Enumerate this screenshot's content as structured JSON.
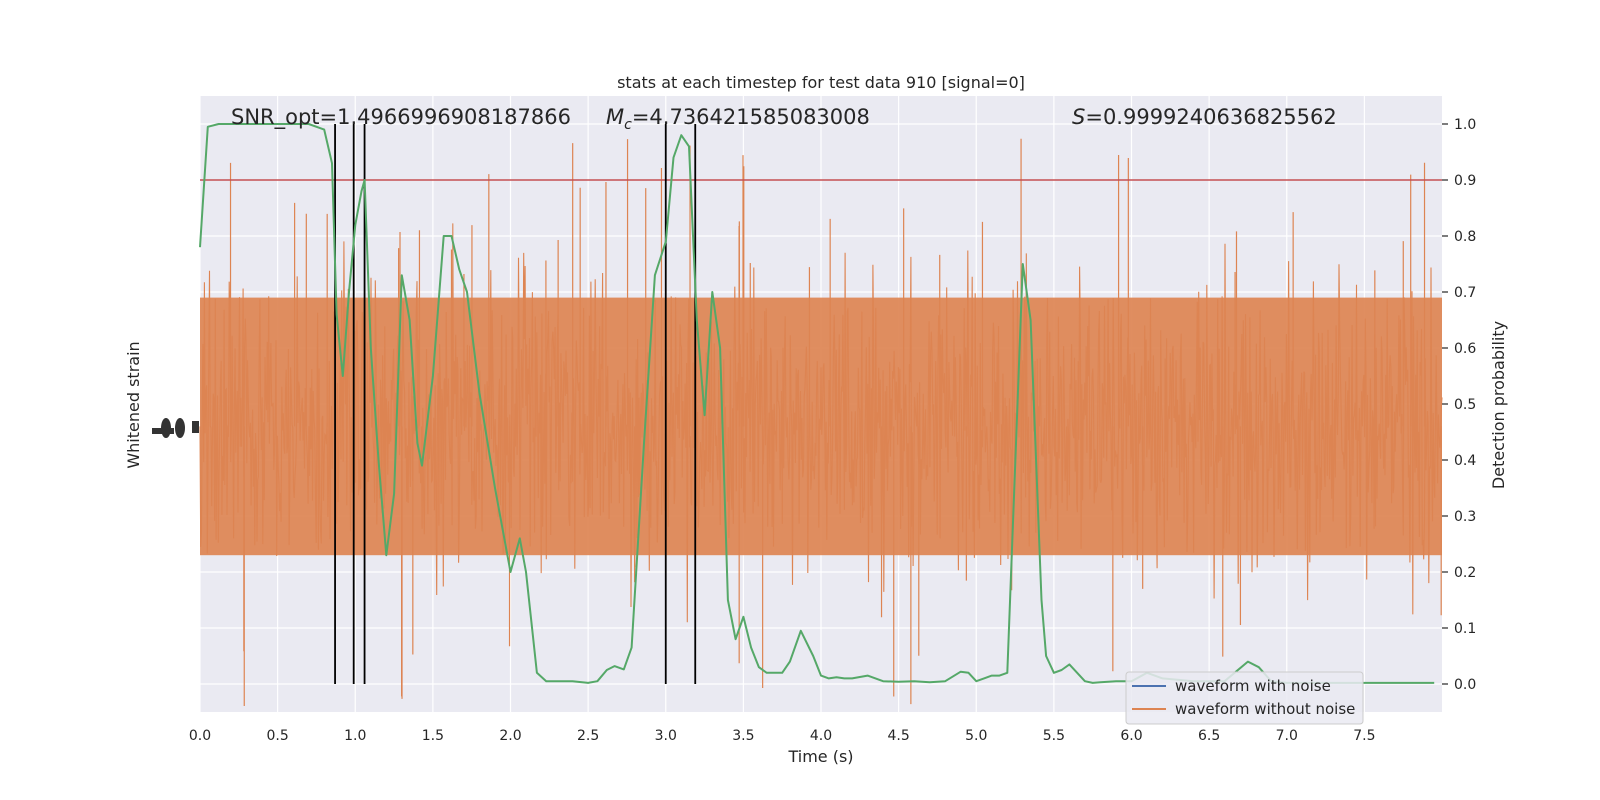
{
  "chart_data": {
    "type": "line",
    "title": "stats at each timestep for test data 910 [signal=0]",
    "xlabel": "Time (s)",
    "ylabel_left": "Whitened strain",
    "ylabel_right": "Detection probability",
    "xlim": [
      0,
      8
    ],
    "ylim_right": [
      -0.05,
      1.05
    ],
    "x_ticks": [
      "0.0",
      "0.5",
      "1.0",
      "1.5",
      "2.0",
      "2.5",
      "3.0",
      "3.5",
      "4.0",
      "4.5",
      "5.0",
      "5.5",
      "6.0",
      "6.5",
      "7.0",
      "7.5"
    ],
    "y_ticks_right": [
      "0.0",
      "0.1",
      "0.2",
      "0.3",
      "0.4",
      "0.5",
      "0.6",
      "0.7",
      "0.8",
      "0.9",
      "1.0"
    ],
    "grid": true,
    "annotations": {
      "snr": "SNR_opt=1.4966996908187866",
      "mc_symbol": "M",
      "mc_sub": "c",
      "mc_value": "=4.736421585083008",
      "s_symbol": "S",
      "s_value": "=0.9999240636825562"
    },
    "threshold": 0.9,
    "vlines": [
      0.87,
      0.99,
      1.06,
      3.0,
      3.19
    ],
    "legend": {
      "placement": "lower-right",
      "entries": [
        {
          "label": "waveform with noise",
          "color": "#4c72b0"
        },
        {
          "label": "waveform without noise",
          "color": "#dd8452"
        }
      ]
    },
    "series": [
      {
        "name": "",
        "color": "#55a868",
        "x": [
          0.0,
          0.05,
          0.12,
          0.2,
          0.3,
          0.4,
          0.5,
          0.6,
          0.7,
          0.8,
          0.85,
          0.88,
          0.92,
          0.96,
          1.0,
          1.04,
          1.06,
          1.1,
          1.15,
          1.2,
          1.25,
          1.3,
          1.35,
          1.4,
          1.43,
          1.5,
          1.57,
          1.62,
          1.67,
          1.72,
          1.8,
          1.9,
          2.0,
          2.06,
          2.1,
          2.17,
          2.23,
          2.3,
          2.4,
          2.5,
          2.56,
          2.62,
          2.67,
          2.73,
          2.78,
          2.86,
          2.93,
          3.0,
          3.05,
          3.1,
          3.15,
          3.2,
          3.25,
          3.3,
          3.35,
          3.4,
          3.45,
          3.5,
          3.55,
          3.6,
          3.65,
          3.7,
          3.75,
          3.8,
          3.87,
          3.95,
          4.0,
          4.05,
          4.1,
          4.15,
          4.2,
          4.3,
          4.4,
          4.5,
          4.6,
          4.7,
          4.8,
          4.9,
          4.95,
          5.0,
          5.05,
          5.1,
          5.15,
          5.2,
          5.3,
          5.35,
          5.42,
          5.45,
          5.5,
          5.55,
          5.6,
          5.7,
          5.75,
          5.8,
          5.9,
          6.0,
          6.1,
          6.2,
          6.4,
          6.6,
          6.75,
          6.82,
          6.9,
          7.0,
          7.2,
          7.5,
          7.7,
          7.95
        ],
        "y": [
          0.78,
          0.995,
          1.0,
          1.0,
          1.0,
          1.0,
          1.0,
          1.0,
          1.0,
          0.99,
          0.93,
          0.66,
          0.55,
          0.7,
          0.82,
          0.88,
          0.9,
          0.6,
          0.4,
          0.23,
          0.34,
          0.73,
          0.65,
          0.43,
          0.39,
          0.55,
          0.8,
          0.8,
          0.74,
          0.7,
          0.52,
          0.35,
          0.2,
          0.26,
          0.2,
          0.02,
          0.005,
          0.005,
          0.005,
          0.002,
          0.005,
          0.025,
          0.032,
          0.026,
          0.065,
          0.43,
          0.73,
          0.79,
          0.94,
          0.98,
          0.96,
          0.65,
          0.48,
          0.7,
          0.6,
          0.15,
          0.08,
          0.12,
          0.065,
          0.03,
          0.02,
          0.02,
          0.02,
          0.04,
          0.095,
          0.05,
          0.015,
          0.01,
          0.012,
          0.01,
          0.01,
          0.015,
          0.005,
          0.004,
          0.005,
          0.003,
          0.005,
          0.022,
          0.02,
          0.005,
          0.01,
          0.015,
          0.015,
          0.02,
          0.75,
          0.65,
          0.15,
          0.05,
          0.02,
          0.025,
          0.035,
          0.005,
          0.002,
          0.003,
          0.005,
          0.005,
          0.02,
          0.01,
          0.005,
          0.005,
          0.04,
          0.03,
          0.005,
          0.002,
          0.002,
          0.002,
          0.002,
          0.002
        ]
      }
    ]
  }
}
